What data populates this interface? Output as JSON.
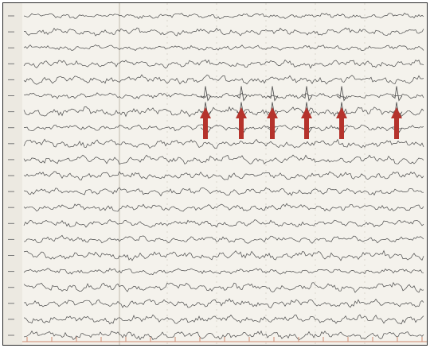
{
  "eeg": {
    "channel_count": 21,
    "spike_marker_count": 6,
    "colors": {
      "background": "#f4f2ec",
      "trace": "#4a4a4a",
      "grid": "#c9c4b8",
      "arrow": "#b5332c",
      "timeline_ticks": "#d08a70",
      "frame": "#2a2a2a"
    },
    "marker_icon": "arrow-up-icon"
  }
}
